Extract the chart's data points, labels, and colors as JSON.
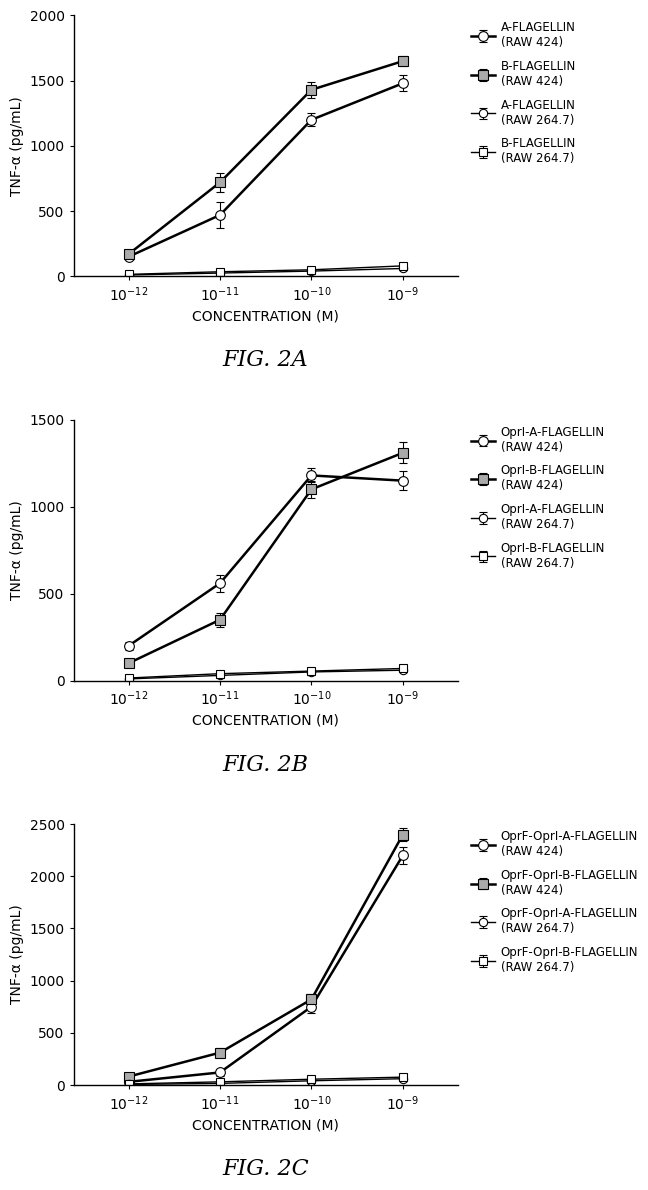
{
  "fig_width": 8.0,
  "fig_height": 11.5,
  "background_color": "#ffffff",
  "x_values": [
    -12,
    -11,
    -10,
    -9
  ],
  "x_tick_labels": [
    "10$^{-12}$",
    "10$^{-11}$",
    "10$^{-10}$",
    "10$^{-9}$"
  ],
  "panels": [
    {
      "title": "FIG. 2A",
      "ylabel": "TNF-α (pg/mL)",
      "xlabel": "CONCENTRATION (M)",
      "ylim": [
        0,
        2000
      ],
      "yticks": [
        0,
        500,
        1000,
        1500,
        2000
      ],
      "series": [
        {
          "label": "A-FLAGELLIN\n(RAW 424)",
          "y": [
            150,
            470,
            1200,
            1480
          ],
          "yerr": [
            20,
            100,
            50,
            60
          ],
          "marker": "o",
          "linestyle": "-",
          "linewidth": 1.8,
          "markersize": 7,
          "mfc": "white",
          "mec": "#000000",
          "ecolor": "#000000"
        },
        {
          "label": "B-FLAGELLIN\n(RAW 424)",
          "y": [
            170,
            720,
            1430,
            1650
          ],
          "yerr": [
            20,
            70,
            60,
            40
          ],
          "marker": "s",
          "linestyle": "-",
          "linewidth": 1.8,
          "markersize": 7,
          "mfc": "#aaaaaa",
          "mec": "#000000",
          "ecolor": "#000000"
        },
        {
          "label": "A-FLAGELLIN\n(RAW 264.7)",
          "y": [
            10,
            25,
            40,
            60
          ],
          "yerr": [
            3,
            5,
            8,
            10
          ],
          "marker": "o",
          "linestyle": "-",
          "linewidth": 1.0,
          "markersize": 6,
          "mfc": "white",
          "mec": "#000000",
          "ecolor": "#000000",
          "thin": true
        },
        {
          "label": "B-FLAGELLIN\n(RAW 264.7)",
          "y": [
            15,
            35,
            50,
            80
          ],
          "yerr": [
            4,
            8,
            10,
            12
          ],
          "marker": "s",
          "linestyle": "-",
          "linewidth": 1.0,
          "markersize": 6,
          "mfc": "white",
          "mec": "#000000",
          "ecolor": "#000000",
          "thin": true
        }
      ]
    },
    {
      "title": "FIG. 2B",
      "ylabel": "TNF-α (pg/mL)",
      "xlabel": "CONCENTRATION (M)",
      "ylim": [
        0,
        1500
      ],
      "yticks": [
        0,
        500,
        1000,
        1500
      ],
      "series": [
        {
          "label": "OprI-A-FLAGELLIN\n(RAW 424)",
          "y": [
            200,
            560,
            1180,
            1150
          ],
          "yerr": [
            25,
            50,
            40,
            55
          ],
          "marker": "o",
          "linestyle": "-",
          "linewidth": 1.8,
          "markersize": 7,
          "mfc": "white",
          "mec": "#000000",
          "ecolor": "#000000"
        },
        {
          "label": "OprI-B-FLAGELLIN\n(RAW 424)",
          "y": [
            100,
            350,
            1100,
            1310
          ],
          "yerr": [
            20,
            40,
            50,
            60
          ],
          "marker": "s",
          "linestyle": "-",
          "linewidth": 1.8,
          "markersize": 7,
          "mfc": "#aaaaaa",
          "mec": "#000000",
          "ecolor": "#000000"
        },
        {
          "label": "OprI-A-FLAGELLIN\n(RAW 264.7)",
          "y": [
            10,
            30,
            50,
            60
          ],
          "yerr": [
            3,
            8,
            10,
            12
          ],
          "marker": "o",
          "linestyle": "-",
          "linewidth": 1.0,
          "markersize": 6,
          "mfc": "white",
          "mec": "#000000",
          "ecolor": "#000000",
          "thin": true
        },
        {
          "label": "OprI-B-FLAGELLIN\n(RAW 264.7)",
          "y": [
            15,
            40,
            55,
            70
          ],
          "yerr": [
            4,
            10,
            12,
            15
          ],
          "marker": "s",
          "linestyle": "-",
          "linewidth": 1.0,
          "markersize": 6,
          "mfc": "white",
          "mec": "#000000",
          "ecolor": "#000000",
          "thin": true
        }
      ]
    },
    {
      "title": "FIG. 2C",
      "ylabel": "TNF-α (pg/mL)",
      "xlabel": "CONCENTRATION (M)",
      "ylim": [
        0,
        2500
      ],
      "yticks": [
        0,
        500,
        1000,
        1500,
        2000,
        2500
      ],
      "series": [
        {
          "label": "OprF-OprI-A-FLAGELLIN\n(RAW 424)",
          "y": [
            30,
            120,
            750,
            2200
          ],
          "yerr": [
            10,
            30,
            60,
            80
          ],
          "marker": "o",
          "linestyle": "-",
          "linewidth": 1.8,
          "markersize": 7,
          "mfc": "white",
          "mec": "#000000",
          "ecolor": "#000000"
        },
        {
          "label": "OprF-OprI-B-FLAGELLIN\n(RAW 424)",
          "y": [
            80,
            310,
            820,
            2400
          ],
          "yerr": [
            15,
            40,
            50,
            60
          ],
          "marker": "s",
          "linestyle": "-",
          "linewidth": 1.8,
          "markersize": 7,
          "mfc": "#aaaaaa",
          "mec": "#000000",
          "ecolor": "#000000"
        },
        {
          "label": "OprF-OprI-A-FLAGELLIN\n(RAW 264.7)",
          "y": [
            5,
            15,
            40,
            60
          ],
          "yerr": [
            3,
            5,
            8,
            12
          ],
          "marker": "o",
          "linestyle": "-",
          "linewidth": 1.0,
          "markersize": 6,
          "mfc": "white",
          "mec": "#000000",
          "ecolor": "#000000",
          "thin": true
        },
        {
          "label": "OprF-OprI-B-FLAGELLIN\n(RAW 264.7)",
          "y": [
            10,
            30,
            55,
            75
          ],
          "yerr": [
            4,
            10,
            12,
            15
          ],
          "marker": "s",
          "linestyle": "-",
          "linewidth": 1.0,
          "markersize": 6,
          "mfc": "white",
          "mec": "#000000",
          "ecolor": "#000000",
          "thin": true
        }
      ]
    }
  ]
}
